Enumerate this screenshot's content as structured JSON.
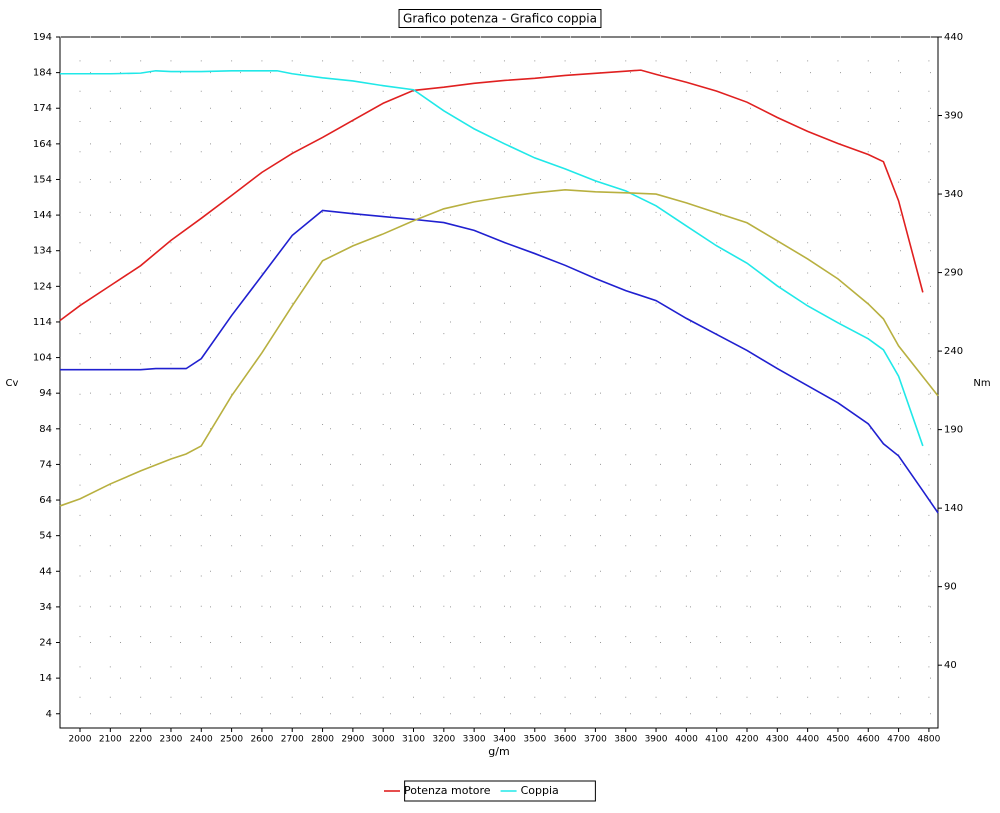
{
  "chart_data": {
    "type": "line",
    "title": "Grafico potenza - Grafico coppia",
    "x_label": "g/m",
    "y_label": "Cv",
    "y2_label": "Nm",
    "xlim": [
      1934,
      4830
    ],
    "xticks": [
      2000,
      2100,
      2200,
      2300,
      2400,
      2500,
      2600,
      2700,
      2800,
      2900,
      3000,
      3100,
      3200,
      3300,
      3400,
      3500,
      3600,
      3700,
      3800,
      3900,
      4000,
      4100,
      4200,
      4300,
      4400,
      4500,
      4600,
      4700,
      4800
    ],
    "ylim": [
      0,
      194
    ],
    "yticks": [
      4,
      14,
      24,
      34,
      44,
      54,
      64,
      74,
      84,
      94,
      104,
      114,
      124,
      134,
      144,
      154,
      164,
      174,
      184,
      194
    ],
    "y2lim": [
      0,
      440
    ],
    "y2ticks": [
      40,
      90,
      140,
      190,
      240,
      290,
      340,
      390,
      440
    ],
    "grid": true,
    "series": [
      {
        "name": "Potenza motore",
        "color": "#e02020",
        "axis": "y",
        "x": [
          1934,
          2000,
          2100,
          2200,
          2300,
          2400,
          2500,
          2600,
          2700,
          2800,
          2900,
          3000,
          3100,
          3200,
          3300,
          3400,
          3500,
          3600,
          3700,
          3800,
          3850,
          3900,
          4000,
          4100,
          4200,
          4300,
          4400,
          4500,
          4600,
          4650,
          4700,
          4780
        ],
        "values": [
          114.4,
          118.6,
          124.2,
          129.8,
          136.9,
          143.1,
          149.5,
          156,
          161.3,
          165.8,
          170.6,
          175.4,
          179,
          179.9,
          181,
          181.8,
          182.4,
          183.2,
          183.8,
          184.4,
          184.7,
          183.5,
          181.3,
          178.8,
          175.7,
          171.4,
          167.5,
          164.1,
          161,
          159,
          148,
          122.3
        ]
      },
      {
        "name": "Coppia",
        "color": "#20e8e8",
        "axis": "y2",
        "x": [
          1934,
          2000,
          2100,
          2200,
          2250,
          2300,
          2400,
          2500,
          2600,
          2650,
          2700,
          2800,
          2900,
          3000,
          3100,
          3200,
          3300,
          3400,
          3500,
          3600,
          3700,
          3800,
          3900,
          4000,
          4100,
          4200,
          4300,
          4400,
          4500,
          4600,
          4650,
          4700,
          4780
        ],
        "values": [
          416.6,
          416.6,
          416.6,
          417,
          418.5,
          418,
          418,
          418.5,
          418.5,
          418.5,
          416.6,
          414,
          412,
          409,
          406.4,
          393,
          381.5,
          372,
          363,
          356,
          348.4,
          342,
          332.5,
          319.7,
          307,
          296,
          281.5,
          268.8,
          258,
          247.8,
          240.8,
          224,
          179.6
        ]
      },
      {
        "color": "#2020d0",
        "axis": "y",
        "x": [
          1934,
          2200,
          2250,
          2350,
          2400,
          2500,
          2600,
          2700,
          2800,
          2900,
          3000,
          3100,
          3200,
          3300,
          3400,
          3500,
          3600,
          3700,
          3800,
          3900,
          4000,
          4100,
          4200,
          4300,
          4400,
          4500,
          4600,
          4650,
          4700,
          4780,
          4830
        ],
        "values": [
          100.6,
          100.6,
          100.9,
          100.9,
          103.7,
          115.8,
          127,
          138.3,
          145.3,
          144.4,
          143.6,
          142.8,
          141.9,
          139.7,
          136.3,
          133.2,
          129.9,
          126.2,
          122.8,
          120,
          115,
          110.5,
          106,
          100.9,
          96.1,
          91.3,
          85.4,
          79.8,
          76.4,
          66.6,
          60.4
        ]
      },
      {
        "color": "#b8b040",
        "axis": "y2",
        "x": [
          1934,
          2000,
          2100,
          2200,
          2300,
          2350,
          2400,
          2500,
          2600,
          2700,
          2800,
          2900,
          3000,
          3100,
          3200,
          3300,
          3400,
          3500,
          3600,
          3700,
          3800,
          3900,
          4000,
          4100,
          4200,
          4300,
          4400,
          4500,
          4600,
          4650,
          4700,
          4830
        ],
        "values": [
          141.4,
          145.9,
          155.4,
          163.7,
          171.3,
          174.5,
          179.6,
          211.5,
          238.9,
          268.8,
          297.5,
          307,
          314.6,
          323,
          330.6,
          335,
          338.2,
          340.8,
          342.7,
          341.4,
          340.8,
          340,
          334.4,
          328,
          321.7,
          310.2,
          298.7,
          286,
          270,
          260.5,
          243.3,
          211.5
        ]
      }
    ]
  }
}
